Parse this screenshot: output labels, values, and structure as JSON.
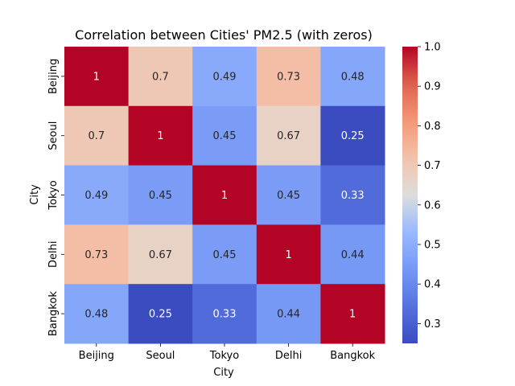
{
  "chart_data": {
    "type": "heatmap",
    "title": "Correlation between Cities' PM2.5 (with zeros)",
    "xlabel": "City",
    "ylabel": "City",
    "x_categories": [
      "Beijing",
      "Seoul",
      "Tokyo",
      "Delhi",
      "Bangkok"
    ],
    "y_categories": [
      "Beijing",
      "Seoul",
      "Tokyo",
      "Delhi",
      "Bangkok"
    ],
    "values": [
      [
        1,
        0.7,
        0.49,
        0.73,
        0.48
      ],
      [
        0.7,
        1,
        0.45,
        0.67,
        0.25
      ],
      [
        0.49,
        0.45,
        1,
        0.45,
        0.33
      ],
      [
        0.73,
        0.67,
        0.45,
        1,
        0.44
      ],
      [
        0.48,
        0.25,
        0.33,
        0.44,
        1
      ]
    ],
    "cell_labels": [
      [
        "1",
        "0.7",
        "0.49",
        "0.73",
        "0.48"
      ],
      [
        "0.7",
        "1",
        "0.45",
        "0.67",
        "0.25"
      ],
      [
        "0.49",
        "0.45",
        "1",
        "0.45",
        "0.33"
      ],
      [
        "0.73",
        "0.67",
        "0.45",
        "1",
        "0.44"
      ],
      [
        "0.48",
        "0.25",
        "0.33",
        "0.44",
        "1"
      ]
    ],
    "colormap": "coolwarm",
    "vmin": 0.25,
    "vmax": 1.0,
    "colorbar_ticks": [
      "0.3",
      "0.4",
      "0.5",
      "0.6",
      "0.7",
      "0.8",
      "0.9",
      "1.0"
    ],
    "annotation_color_dark": "#262626",
    "annotation_color_light": "#ffffff"
  }
}
